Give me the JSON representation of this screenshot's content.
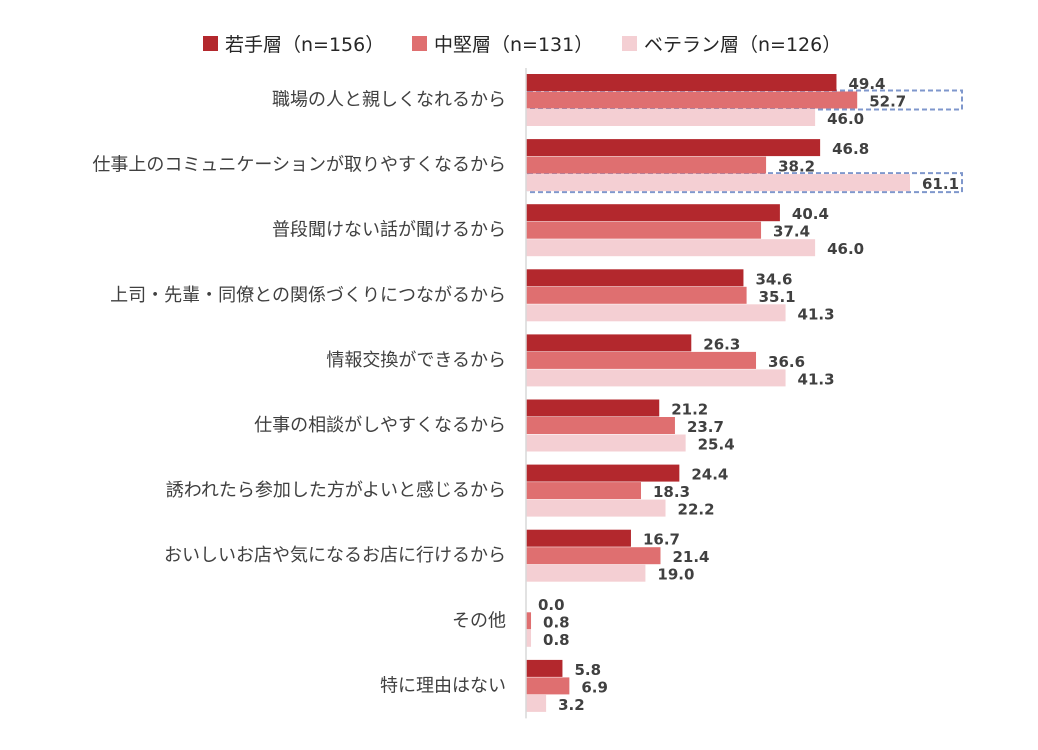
{
  "chart_data": {
    "type": "bar",
    "orientation": "horizontal",
    "categories": [
      "職場の人と親しくなれるから",
      "仕事上のコミュニケーションが取りやすくなるから",
      "普段聞けない話が聞けるから",
      "上司・先輩・同僚との関係づくりにつながるから",
      "情報交換ができるから",
      "仕事の相談がしやすくなるから",
      "誘われたら参加した方がよいと感じるから",
      "おいしいお店や気になるお店に行けるから",
      "その他",
      "特に理由はない"
    ],
    "series": [
      {
        "name": "若手層（n=156）",
        "color": "#b3282d",
        "values": [
          49.4,
          46.8,
          40.4,
          34.6,
          26.3,
          21.2,
          24.4,
          16.7,
          0.0,
          5.8
        ]
      },
      {
        "name": "中堅層（n=131）",
        "color": "#df6f70",
        "values": [
          52.7,
          38.2,
          37.4,
          35.1,
          36.6,
          23.7,
          18.3,
          21.4,
          0.8,
          6.9
        ]
      },
      {
        "name": "ベテラン層（n=126）",
        "color": "#f4cfd3",
        "values": [
          46.0,
          61.1,
          46.0,
          41.3,
          41.3,
          25.4,
          22.2,
          19.0,
          0.8,
          3.2
        ]
      }
    ],
    "xlim": [
      0,
      65
    ],
    "value_format": "0.0",
    "legend": "top",
    "grid": false,
    "highlights": [
      {
        "category_index": 0,
        "series_index": 1
      },
      {
        "category_index": 1,
        "series_index": 2
      }
    ],
    "highlight_color": "#7f97cc"
  }
}
